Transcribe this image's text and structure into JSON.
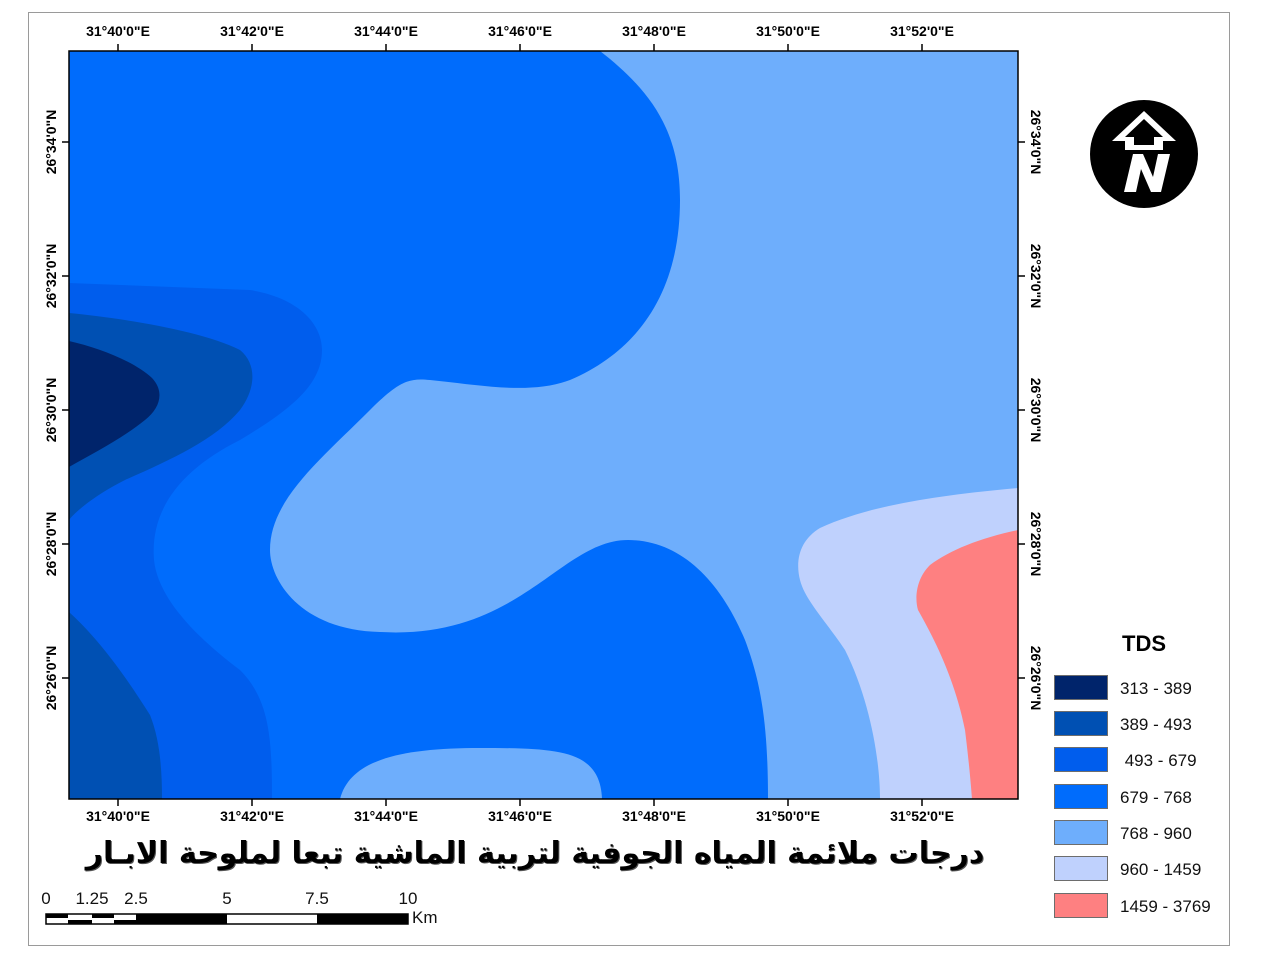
{
  "map": {
    "title": "درجات ملائمة المياه الجوفية لتربية الماشية تبعا لملوحة الابـار",
    "longitude_labels": [
      "31°40'0\"E",
      "31°42'0\"E",
      "31°44'0\"E",
      "31°46'0\"E",
      "31°48'0\"E",
      "31°50'0\"E",
      "31°52'0\"E"
    ],
    "latitude_labels": [
      "26°34'0\"N",
      "26°32'0\"N",
      "26°30'0\"N",
      "26°28'0\"N",
      "26°26'0\"N"
    ],
    "north_arrow": {
      "icon": "north-arrow-icon",
      "label": "N"
    },
    "legend": {
      "title": "TDS",
      "classes": [
        {
          "label": "313 - 389",
          "color": "#00246b"
        },
        {
          "label": "389 - 493",
          "color": "#0050b3"
        },
        {
          "label": " 493 - 679",
          "color": "#005ded"
        },
        {
          "label": "679 - 768",
          "color": "#006cfc"
        },
        {
          "label": "768 - 960",
          "color": "#6eaefc"
        },
        {
          "label": "960 - 1459",
          "color": "#bfd1fd"
        },
        {
          "label": "1459 - 3769",
          "color": "#fe8081"
        }
      ]
    },
    "scale_bar": {
      "labels": [
        "0",
        "1.25",
        "2.5",
        "5",
        "7.5",
        "10"
      ],
      "unit": "Km"
    }
  }
}
